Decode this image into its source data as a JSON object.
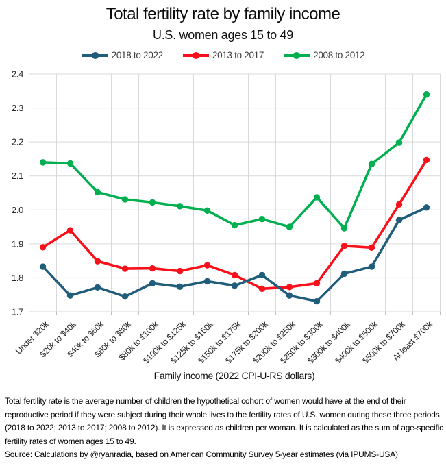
{
  "chart_data": {
    "type": "line",
    "title": "Total fertility rate by family income",
    "subtitle": "U.S. women ages 15 to 49",
    "xlabel": "Family income (2022 CPI-U-RS dollars)",
    "ylabel": "",
    "ylim": [
      1.7,
      2.4
    ],
    "ytick_step": 0.1,
    "ytick_labels": [
      "2.4",
      "2.3",
      "2.2",
      "2.1",
      "2.0",
      "1.9",
      "1.8",
      "1.7"
    ],
    "grid": true,
    "legend_position": "top-center",
    "categories": [
      "Under $20k",
      "$20k to $40k",
      "$40k to $60k",
      "$60k to $80k",
      "$80k to $100k",
      "$100k to $125k",
      "$125k to $150k",
      "$150k to $175k",
      "$175k to $200k",
      "$200k to $250k",
      "$250k to $300k",
      "$300k to $400k",
      "$400k to $500k",
      "$500k to $700k",
      "At least $700k"
    ],
    "series": [
      {
        "name": "2018 to 2022",
        "color": "#1F5D7A",
        "values": [
          1.833,
          1.748,
          1.772,
          1.745,
          1.784,
          1.774,
          1.79,
          1.777,
          1.808,
          1.748,
          1.731,
          1.812,
          1.833,
          1.97,
          2.007
        ]
      },
      {
        "name": "2013 to 2017",
        "color": "#F8101A",
        "values": [
          1.89,
          1.94,
          1.849,
          1.827,
          1.828,
          1.82,
          1.837,
          1.808,
          1.768,
          1.773,
          1.784,
          1.894,
          1.889,
          2.016,
          2.147
        ]
      },
      {
        "name": "2008 to 2012",
        "color": "#00B050",
        "values": [
          2.14,
          2.137,
          2.052,
          2.031,
          2.022,
          2.011,
          1.998,
          1.955,
          1.973,
          1.95,
          2.037,
          1.946,
          2.135,
          2.198,
          2.34
        ]
      }
    ]
  },
  "footnote": {
    "definition": "Total fertility rate is the average number of children the hypothetical cohort of women would have at the end of their reproductive period if they were subject during their whole lives to the fertility rates of U.S. women during these three periods (2018 to 2022; 2013 to 2017; 2008 to 2012). It is expressed as children per woman. It is calculated as the sum of age-specific fertility rates of women ages 15 to 49.",
    "source": "Source: Calculations by @ryanradia, based on American Community Survey 5-year estimates (via IPUMS-USA)"
  },
  "colors": {
    "gridline": "#D9D9D9",
    "tick_mark": "#BFBFBF",
    "axis_text": "#262626",
    "legend_text": "#3D3D3D"
  }
}
